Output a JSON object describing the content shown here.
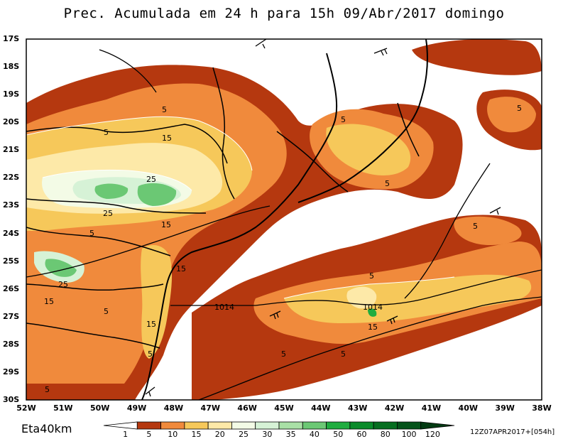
{
  "title": "Prec. Acumulada em 24 h para 15h 09/Abr/2017 domingo",
  "model": "Eta40km",
  "run_stamp": "12Z07APR2017+[054h]",
  "lat_labels": [
    "17S",
    "18S",
    "19S",
    "20S",
    "21S",
    "22S",
    "23S",
    "24S",
    "25S",
    "26S",
    "27S",
    "28S",
    "29S",
    "30S"
  ],
  "lon_labels": [
    "52W",
    "51W",
    "50W",
    "49W",
    "48W",
    "47W",
    "46W",
    "45W",
    "44W",
    "43W",
    "42W",
    "41W",
    "40W",
    "39W",
    "38W"
  ],
  "colorbar": {
    "labels": [
      "1",
      "5",
      "10",
      "15",
      "20",
      "25",
      "30",
      "35",
      "40",
      "50",
      "60",
      "80",
      "100",
      "120"
    ],
    "colors": [
      "#ffffff",
      "#b5380f",
      "#f08a3c",
      "#f6c85a",
      "#fde9a8",
      "#f3fbe6",
      "#d6f2d6",
      "#a9e0a6",
      "#6bc874",
      "#1fad3f",
      "#0a8b2a",
      "#066e20",
      "#04531a",
      "#023a12"
    ]
  },
  "contour_labels": {
    "pressure": "1014",
    "isoline_5": "5",
    "isoline_15": "15",
    "isoline_25": "25"
  }
}
